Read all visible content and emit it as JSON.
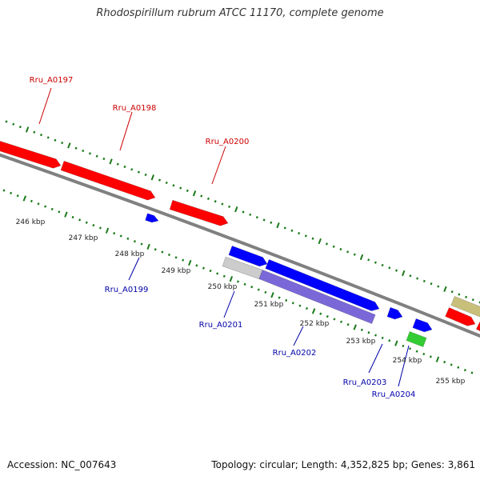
{
  "title": "Rhodospirillum rubrum ATCC 11170, complete genome",
  "footer": {
    "accession": "Accession: NC_007643",
    "summary": "Topology: circular; Length: 4,352,825 bp; Genes: 3,861"
  },
  "colors": {
    "backbone": "#808080",
    "ticks": "#1a7a1a",
    "forward_gene": "#ff0000",
    "reverse_gene": "#0000ff",
    "pale_blue": "#7b68d8",
    "light_gray": "#cccccc",
    "green": "#33cc33",
    "khaki": "#c8bf7a",
    "forward_label": "#cc0000",
    "reverse_label": "#0000aa"
  },
  "kbp_labels": [
    "246 kbp",
    "247 kbp",
    "248 kbp",
    "249 kbp",
    "250 kbp",
    "251 kbp",
    "252 kbp",
    "253 kbp",
    "254 kbp",
    "255 kbp"
  ],
  "gene_labels": [
    {
      "text": "Rru_A0197",
      "strand": "forward"
    },
    {
      "text": "Rru_A0198",
      "strand": "forward"
    },
    {
      "text": "Rru_A0200",
      "strand": "forward"
    },
    {
      "text": "Rru_A0199",
      "strand": "reverse"
    },
    {
      "text": "Rru_A0201",
      "strand": "reverse"
    },
    {
      "text": "Rru_A0202",
      "strand": "reverse"
    },
    {
      "text": "Rru_A0203",
      "strand": "reverse"
    },
    {
      "text": "Rru_A0204",
      "strand": "reverse"
    }
  ]
}
